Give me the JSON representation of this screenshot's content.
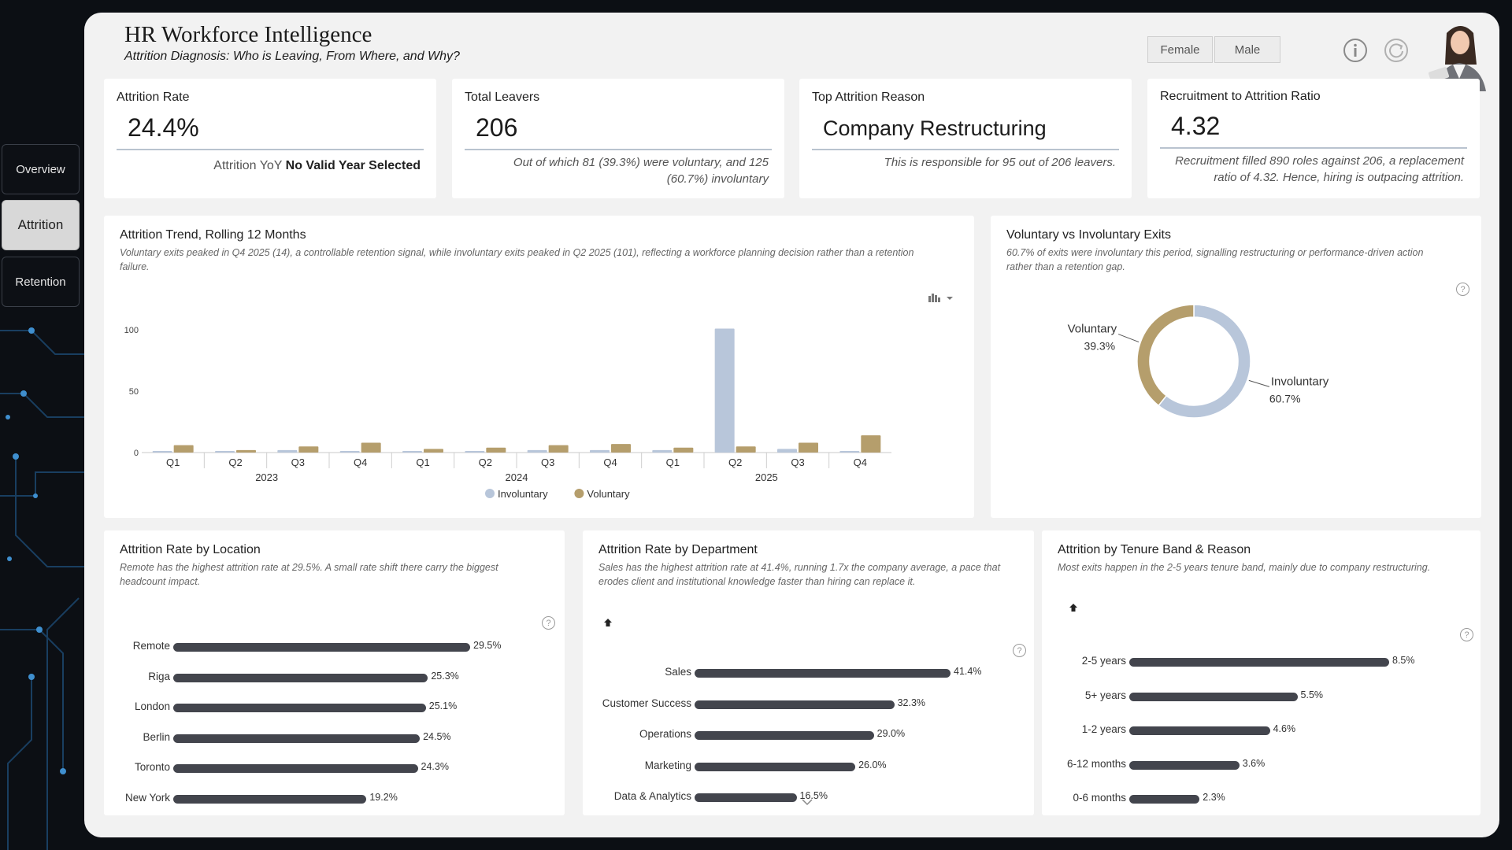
{
  "nav": {
    "items": [
      "Overview",
      "Attrition",
      "Retention"
    ],
    "active": "Attrition"
  },
  "header": {
    "title": "HR Workforce Intelligence",
    "subtitle": "Attrition Diagnosis: Who is Leaving, From Where, and Why?",
    "filters": [
      "Female",
      "Male"
    ]
  },
  "kpis": {
    "attrition_rate": {
      "label": "Attrition Rate",
      "value": "24.4%",
      "note_prefix": "Attrition YoY",
      "note_bold": "No Valid Year Selected"
    },
    "total_leavers": {
      "label": "Total Leavers",
      "value": "206",
      "note_line1": "Out of which 81 (39.3%) were voluntary, and 125",
      "note_line2": "(60.7%) involuntary"
    },
    "top_reason": {
      "label": "Top Attrition Reason",
      "value": "Company Restructuring",
      "note": "This is responsible for 95 out of 206 leavers."
    },
    "recruit_ratio": {
      "label": "Recruitment to Attrition Ratio",
      "value": "4.32",
      "note_line1": "Recruitment filled 890 roles against 206, a replacement",
      "note_line2": "ratio of 4.32. Hence, hiring is outpacing attrition."
    }
  },
  "trend": {
    "title": "Attrition Trend, Rolling 12 Months",
    "desc_line1": "Voluntary exits peaked in Q4 2025 (14), a controllable retention signal, while involuntary exits peaked in Q2 2025 (101), reflecting a workforce planning decision rather than a retention",
    "desc_line2": "failure."
  },
  "donut": {
    "title": "Voluntary vs Involuntary Exits",
    "desc_line1": "60.7% of exits were involuntary this period, signalling restructuring or performance-driven action",
    "desc_line2": "rather than a retention gap."
  },
  "location": {
    "title": "Attrition Rate by Location",
    "desc_line1": "Remote has the highest attrition rate at 29.5%. A small rate shift there carry the biggest",
    "desc_line2": "headcount impact."
  },
  "department": {
    "title": "Attrition Rate by Department",
    "desc_line1": "Sales has the highest attrition rate at 41.4%, running 1.7x the company average, a pace that",
    "desc_line2": "erodes client and institutional knowledge faster than hiring can replace it."
  },
  "tenure": {
    "title": "Attrition by Tenure Band & Reason",
    "desc_line1": "Most exits happen in the 2-5 years tenure band, mainly due to company restructuring."
  },
  "chart_data": [
    {
      "id": "trend",
      "type": "bar",
      "categories": [
        "Q1",
        "Q2",
        "Q3",
        "Q4",
        "Q1",
        "Q2",
        "Q3",
        "Q4",
        "Q1",
        "Q2",
        "Q3",
        "Q4"
      ],
      "year_groups": [
        {
          "label": "2023",
          "count": 4
        },
        {
          "label": "2024",
          "count": 4
        },
        {
          "label": "2025",
          "count": 4
        }
      ],
      "series": [
        {
          "name": "Involuntary",
          "color": "#b8c6da",
          "values": [
            0,
            1,
            2,
            1,
            1,
            1,
            2,
            2,
            2,
            101,
            3,
            1
          ]
        },
        {
          "name": "Voluntary",
          "color": "#b59e6c",
          "values": [
            6,
            2,
            5,
            8,
            3,
            4,
            6,
            7,
            4,
            5,
            8,
            14
          ]
        }
      ],
      "ylim": [
        0,
        100
      ],
      "yticks": [
        0,
        50,
        100
      ],
      "legend": "bottom"
    },
    {
      "id": "donut",
      "type": "pie",
      "categories": [
        "Involuntary",
        "Voluntary"
      ],
      "values": [
        60.7,
        39.3
      ],
      "labels": [
        "60.7%",
        "39.3%"
      ],
      "colors": [
        "#b8c6da",
        "#b59e6c"
      ]
    },
    {
      "id": "location",
      "type": "bar",
      "orientation": "horizontal",
      "categories": [
        "Remote",
        "Riga",
        "London",
        "Berlin",
        "Toronto",
        "New York"
      ],
      "values": [
        29.5,
        25.3,
        25.1,
        24.5,
        24.3,
        19.2
      ],
      "labels": [
        "29.5%",
        "25.3%",
        "25.1%",
        "24.5%",
        "24.3%",
        "19.2%"
      ]
    },
    {
      "id": "department",
      "type": "bar",
      "orientation": "horizontal",
      "categories": [
        "Sales",
        "Customer Success",
        "Operations",
        "Marketing",
        "Data & Analytics"
      ],
      "values": [
        41.4,
        32.3,
        29.0,
        26.0,
        16.5
      ],
      "labels": [
        "41.4%",
        "32.3%",
        "29.0%",
        "26.0%",
        "16.5%"
      ]
    },
    {
      "id": "tenure",
      "type": "bar",
      "orientation": "horizontal",
      "categories": [
        "2-5 years",
        "5+ years",
        "1-2 years",
        "6-12 months",
        "0-6 months"
      ],
      "values": [
        8.5,
        5.5,
        4.6,
        3.6,
        2.3
      ],
      "labels": [
        "8.5%",
        "5.5%",
        "4.6%",
        "3.6%",
        "2.3%"
      ]
    }
  ]
}
